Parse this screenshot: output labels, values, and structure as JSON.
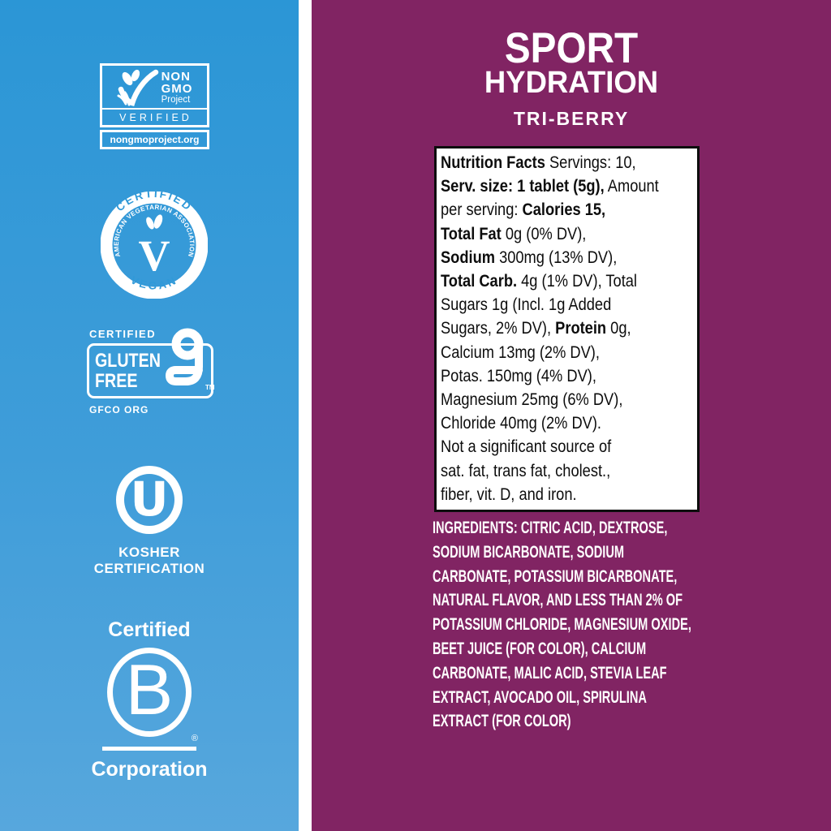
{
  "colors": {
    "blue_top": "#2b96d6",
    "blue_bottom": "#57a7dd",
    "purple": "#812463",
    "white": "#ffffff",
    "black": "#0d0d0d"
  },
  "certifications": {
    "non_gmo": {
      "line1": "NON",
      "line2": "GMO",
      "line3": "Project",
      "verified": "VERIFIED",
      "url": "nongmoproject.org"
    },
    "vegan": {
      "top": "CERTIFIED",
      "inner": "AMERICAN VEGETARIAN ASSOCIATION",
      "letter": "V",
      "bottom": "VEGAN"
    },
    "gluten_free": {
      "certified": "CERTIFIED",
      "words": "GLUTEN FREE",
      "word1": "GLUTEN",
      "word2": "FREE",
      "tm": "TM",
      "org": "GFCO ORG"
    },
    "kosher": {
      "letter": "U",
      "line1": "KOSHER",
      "line2": "CERTIFICATION"
    },
    "b_corp": {
      "certified": "Certified",
      "letter": "B",
      "reg": "®",
      "corporation": "Corporation"
    }
  },
  "product": {
    "title_line1": "SPORT",
    "title_line2": "HYDRATION",
    "flavor": "TRI-BERRY"
  },
  "nutrition": {
    "lines": [
      [
        {
          "bold": true,
          "text": "Nutrition Facts"
        },
        {
          "bold": false,
          "text": " Servings: 10,"
        }
      ],
      [
        {
          "bold": true,
          "text": "Serv. size: 1 tablet (5g),"
        },
        {
          "bold": false,
          "text": " Amount"
        }
      ],
      [
        {
          "bold": false,
          "text": "per serving: "
        },
        {
          "bold": true,
          "text": "Calories 15,"
        }
      ],
      [
        {
          "bold": true,
          "text": "Total Fat"
        },
        {
          "bold": false,
          "text": " 0g (0% DV),"
        }
      ],
      [
        {
          "bold": true,
          "text": "Sodium"
        },
        {
          "bold": false,
          "text": " 300mg (13% DV),"
        }
      ],
      [
        {
          "bold": true,
          "text": "Total Carb."
        },
        {
          "bold": false,
          "text": " 4g (1% DV), Total"
        }
      ],
      [
        {
          "bold": false,
          "text": "Sugars 1g (Incl. 1g Added"
        }
      ],
      [
        {
          "bold": false,
          "text": "Sugars, 2% DV), "
        },
        {
          "bold": true,
          "text": "Protein"
        },
        {
          "bold": false,
          "text": " 0g,"
        }
      ],
      [
        {
          "bold": false,
          "text": "Calcium 13mg (2% DV),"
        }
      ],
      [
        {
          "bold": false,
          "text": "Potas. 150mg (4% DV),"
        }
      ],
      [
        {
          "bold": false,
          "text": "Magnesium 25mg (6% DV),"
        }
      ],
      [
        {
          "bold": false,
          "text": "Chloride 40mg (2% DV)."
        }
      ],
      [
        {
          "bold": false,
          "text": "Not a significant source of"
        }
      ],
      [
        {
          "bold": false,
          "text": "sat. fat, trans fat, cholest.,"
        }
      ],
      [
        {
          "bold": false,
          "text": "fiber, vit. D, and iron."
        }
      ]
    ]
  },
  "ingredients": {
    "lines": [
      "INGREDIENTS: CITRIC ACID, DEXTROSE,",
      "SODIUM BICARBONATE, SODIUM",
      "CARBONATE, POTASSIUM BICARBONATE,",
      "NATURAL FLAVOR, AND LESS THAN 2% OF",
      "POTASSIUM CHLORIDE, MAGNESIUM OXIDE,",
      "BEET JUICE (FOR COLOR), CALCIUM",
      "CARBONATE, MALIC ACID, STEVIA LEAF",
      "EXTRACT, AVOCADO OIL, SPIRULINA",
      "EXTRACT (FOR COLOR)"
    ]
  }
}
